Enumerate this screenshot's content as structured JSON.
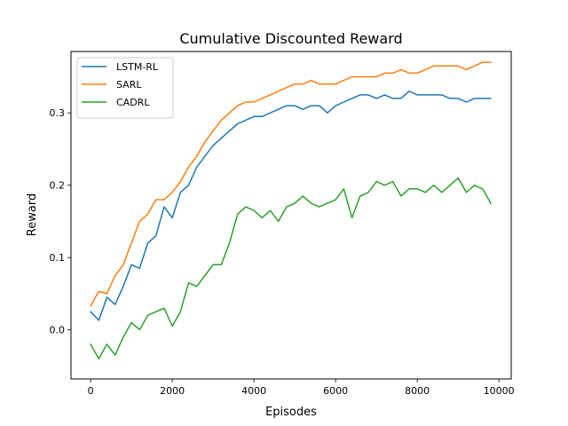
{
  "chart_data": {
    "type": "line",
    "title": "Cumulative Discounted Reward",
    "xlabel": "Episodes",
    "ylabel": "Reward",
    "xlim": [
      -480,
      10300
    ],
    "ylim": [
      -0.068,
      0.385
    ],
    "xticks": [
      0,
      2000,
      4000,
      6000,
      8000,
      10000
    ],
    "xtick_labels": [
      "0",
      "2000",
      "4000",
      "6000",
      "8000",
      "10000"
    ],
    "yticks": [
      0.0,
      0.1,
      0.2,
      0.3
    ],
    "ytick_labels": [
      "0.0",
      "0.1",
      "0.2",
      "0.3"
    ],
    "grid": false,
    "legend_position": "top-left",
    "x": [
      0,
      200,
      400,
      600,
      800,
      1000,
      1200,
      1400,
      1600,
      1800,
      2000,
      2200,
      2400,
      2600,
      2800,
      3000,
      3200,
      3400,
      3600,
      3800,
      4000,
      4200,
      4400,
      4600,
      4800,
      5000,
      5200,
      5400,
      5600,
      5800,
      6000,
      6200,
      6400,
      6600,
      6800,
      7000,
      7200,
      7400,
      7600,
      7800,
      8000,
      8200,
      8400,
      8600,
      8800,
      9000,
      9200,
      9400,
      9600,
      9800
    ],
    "series": [
      {
        "name": "LSTM-RL",
        "color": "#1f77b4",
        "values": [
          0.025,
          0.013,
          0.045,
          0.035,
          0.06,
          0.09,
          0.085,
          0.12,
          0.13,
          0.17,
          0.155,
          0.19,
          0.2,
          0.225,
          0.24,
          0.255,
          0.265,
          0.275,
          0.285,
          0.29,
          0.295,
          0.295,
          0.3,
          0.305,
          0.31,
          0.31,
          0.305,
          0.31,
          0.31,
          0.3,
          0.31,
          0.315,
          0.32,
          0.325,
          0.325,
          0.32,
          0.325,
          0.32,
          0.32,
          0.33,
          0.325,
          0.325,
          0.325,
          0.325,
          0.32,
          0.32,
          0.315,
          0.32,
          0.32,
          0.32
        ]
      },
      {
        "name": "SARL",
        "color": "#ff7f0e",
        "values": [
          0.033,
          0.053,
          0.05,
          0.075,
          0.09,
          0.12,
          0.15,
          0.16,
          0.18,
          0.18,
          0.19,
          0.205,
          0.225,
          0.24,
          0.26,
          0.275,
          0.29,
          0.3,
          0.31,
          0.315,
          0.315,
          0.32,
          0.325,
          0.33,
          0.335,
          0.34,
          0.34,
          0.345,
          0.34,
          0.34,
          0.34,
          0.345,
          0.35,
          0.35,
          0.35,
          0.35,
          0.355,
          0.355,
          0.36,
          0.355,
          0.355,
          0.36,
          0.365,
          0.365,
          0.365,
          0.365,
          0.36,
          0.365,
          0.37,
          0.37
        ]
      },
      {
        "name": "CADRL",
        "color": "#2ca02c",
        "values": [
          -0.02,
          -0.04,
          -0.02,
          -0.035,
          -0.01,
          0.01,
          0.0,
          0.02,
          0.025,
          0.03,
          0.005,
          0.025,
          0.065,
          0.06,
          0.075,
          0.09,
          0.09,
          0.12,
          0.16,
          0.17,
          0.165,
          0.155,
          0.165,
          0.15,
          0.17,
          0.175,
          0.185,
          0.175,
          0.17,
          0.175,
          0.18,
          0.195,
          0.155,
          0.185,
          0.19,
          0.205,
          0.2,
          0.205,
          0.185,
          0.195,
          0.195,
          0.19,
          0.2,
          0.19,
          0.2,
          0.21,
          0.19,
          0.2,
          0.195,
          0.175
        ]
      }
    ]
  }
}
